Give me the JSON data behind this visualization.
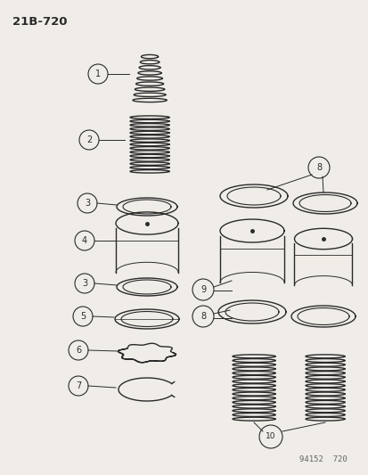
{
  "title": "21B-720",
  "footer": "94152  720",
  "bg_color": "#f0ede8",
  "line_color": "#2a2a2a",
  "fig_w": 4.14,
  "fig_h": 5.33,
  "dpi": 100
}
